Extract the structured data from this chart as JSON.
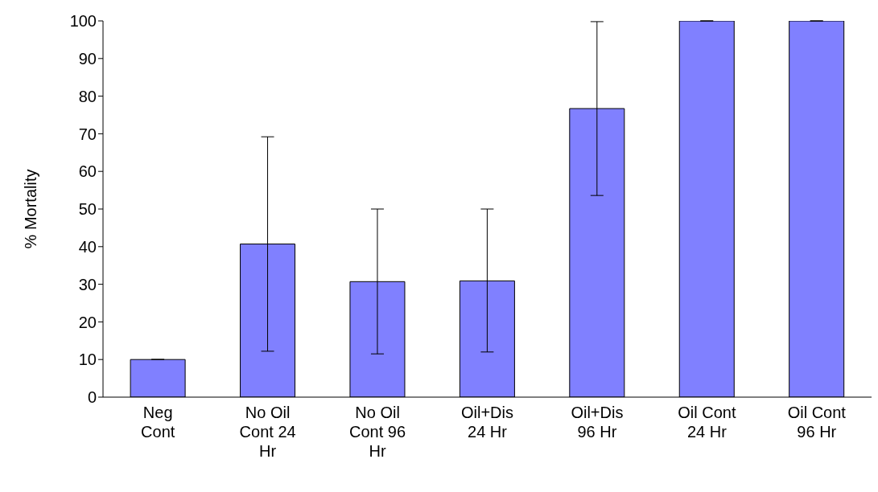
{
  "chart_data": {
    "type": "bar",
    "ylabel": "% Mortality",
    "categories": [
      "Neg Cont",
      "No Oil Cont 24 Hr",
      "No Oil Cont 96 Hr",
      "Oil+Dis 24 Hr",
      "Oil+Dis 96 Hr",
      "Oil Cont 24 Hr",
      "Oil Cont 96 Hr"
    ],
    "values": [
      10,
      40.7,
      30.7,
      30.9,
      76.7,
      100,
      100
    ],
    "errors": [
      0,
      [
        12.2,
        69.2
      ],
      [
        11.5,
        50
      ],
      [
        12,
        50
      ],
      [
        53.6,
        99.8
      ],
      0,
      0
    ],
    "color": "#8080ff",
    "ylim": [
      0,
      100
    ],
    "yticks": [
      0,
      10,
      20,
      30,
      40,
      50,
      60,
      70,
      80,
      90,
      100
    ],
    "grid": false
  }
}
